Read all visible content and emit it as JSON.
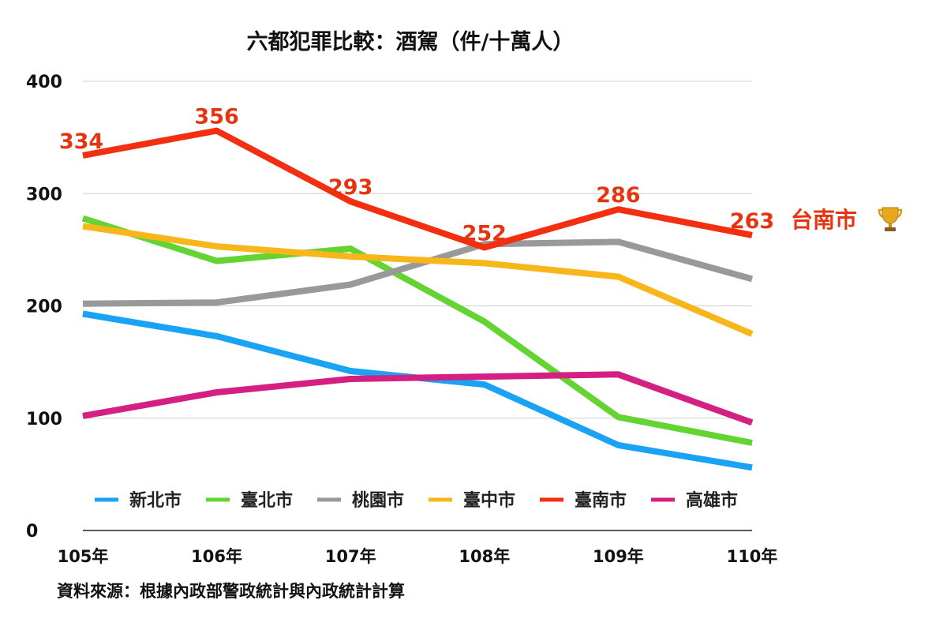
{
  "chart_data": {
    "type": "line",
    "title": "六都犯罪比較：酒駕（件/十萬人）",
    "categories": [
      "105年",
      "106年",
      "107年",
      "108年",
      "109年",
      "110年"
    ],
    "ylim": [
      0,
      400
    ],
    "yticks": [
      0,
      100,
      200,
      300,
      400
    ],
    "grid": true,
    "legend_position": "bottom",
    "series": [
      {
        "name": "新北市",
        "color": "#1aa3f5",
        "values": [
          193,
          173,
          142,
          130,
          76,
          56
        ]
      },
      {
        "name": "臺北市",
        "color": "#64d432",
        "values": [
          278,
          240,
          251,
          186,
          101,
          78
        ]
      },
      {
        "name": "桃園市",
        "color": "#999999",
        "values": [
          202,
          203,
          219,
          255,
          257,
          224
        ]
      },
      {
        "name": "臺中市",
        "color": "#f7b71a",
        "values": [
          271,
          253,
          244,
          238,
          226,
          175
        ]
      },
      {
        "name": "臺南市",
        "color": "#f22f10",
        "values": [
          334,
          356,
          293,
          252,
          286,
          263
        ],
        "data_labels": [
          "334",
          "356",
          "293",
          "252",
          "286",
          "263"
        ]
      },
      {
        "name": "高雄市",
        "color": "#d41f83",
        "values": [
          102,
          123,
          135,
          137,
          139,
          96
        ]
      }
    ],
    "annotation": {
      "text": "台南市",
      "icon": "trophy-icon",
      "color": "#e53411"
    }
  },
  "footer": {
    "source": "資料來源：根據內政部警政統計與內政統計計算"
  }
}
